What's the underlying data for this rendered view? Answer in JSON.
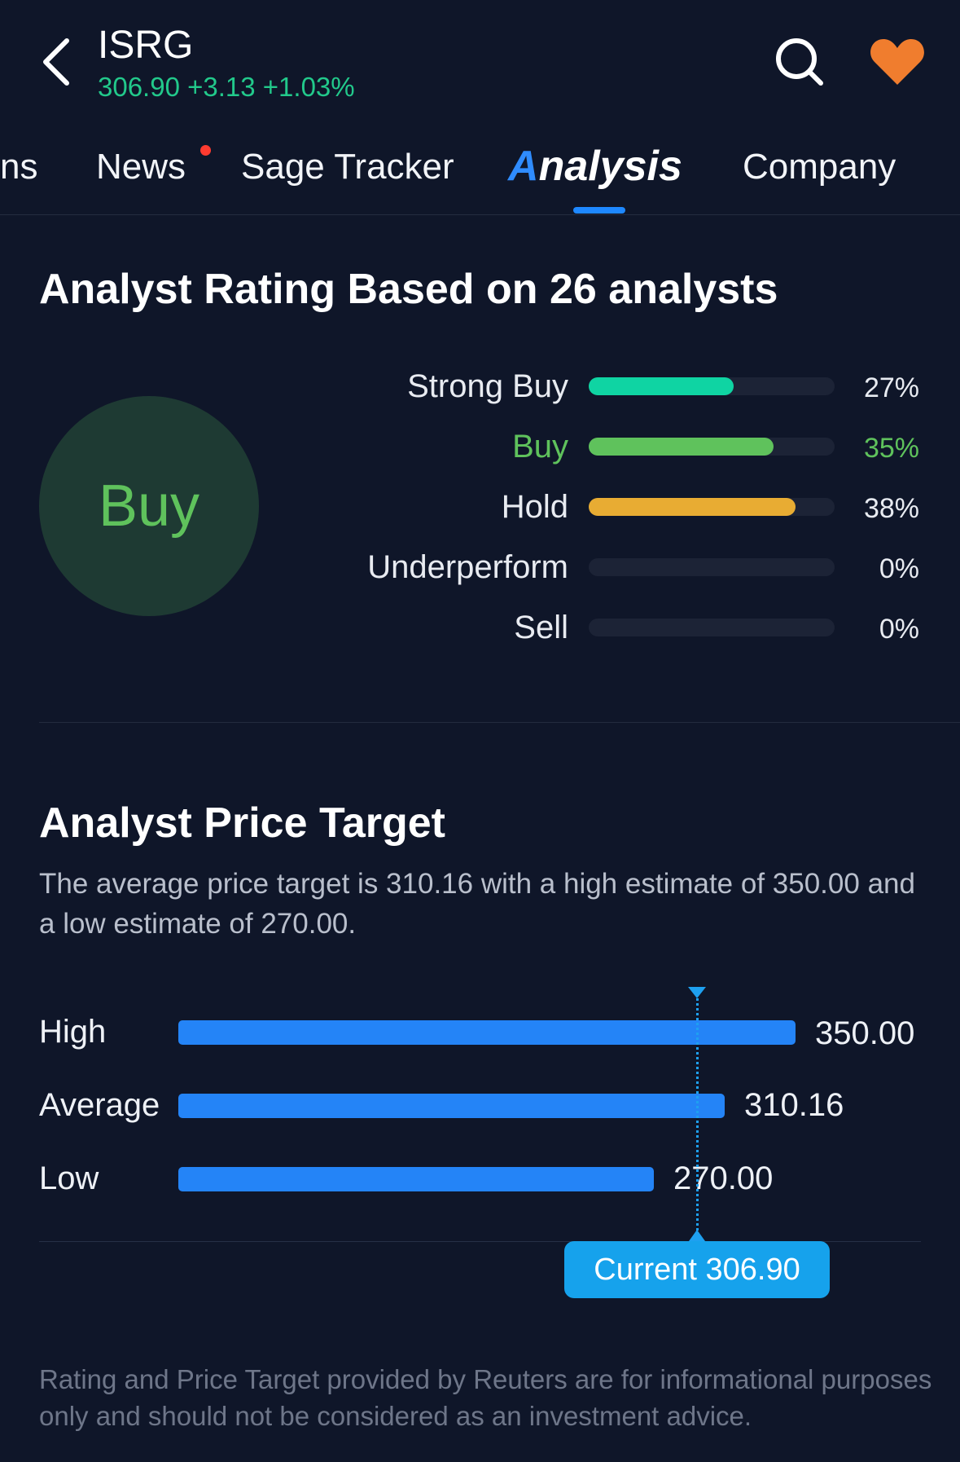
{
  "header": {
    "ticker": "ISRG",
    "quote": "306.90 +3.13 +1.03%",
    "quote_color": "#22c98b",
    "icons": [
      "back-icon",
      "search-icon",
      "heart-icon"
    ],
    "heart_color": "#f07d2e"
  },
  "tabs": [
    {
      "label": "ns"
    },
    {
      "label": "News",
      "has_dot": true
    },
    {
      "label": "Sage Tracker"
    },
    {
      "label_first": "A",
      "label_rest": "nalysis",
      "active": true
    },
    {
      "label": "Company"
    }
  ],
  "rating": {
    "title": "Analyst Rating Based on 26 analysts",
    "consensus": "Buy",
    "rows": [
      {
        "label": "Strong Buy",
        "pct": "27%",
        "fraction": 0.59,
        "color": "#0fd4a3"
      },
      {
        "label": "Buy",
        "pct": "35%",
        "fraction": 0.75,
        "color": "#5fc25c",
        "highlight": true
      },
      {
        "label": "Hold",
        "pct": "38%",
        "fraction": 0.84,
        "color": "#e8ac33"
      },
      {
        "label": "Underperform",
        "pct": "0%",
        "fraction": 0,
        "color": "#1c2336"
      },
      {
        "label": "Sell",
        "pct": "0%",
        "fraction": 0,
        "color": "#1c2336"
      }
    ]
  },
  "price_target": {
    "title": "Analyst Price Target",
    "description": "The average price target is 310.16 with a high estimate of 350.00 and a low estimate of 270.00.",
    "rows": [
      {
        "label": "High",
        "value": "350.00"
      },
      {
        "label": "Average",
        "value": "310.16"
      },
      {
        "label": "Low",
        "value": "270.00"
      }
    ],
    "current_label": "Current 306.90"
  },
  "footer": "Rating and Price Target provided by Reuters are for informational purposes only and should not be considered as an investment advice."
}
